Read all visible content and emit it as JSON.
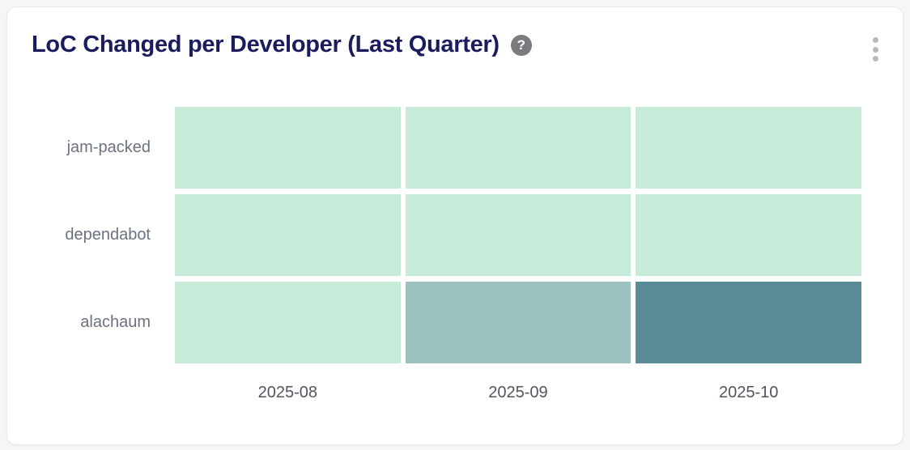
{
  "header": {
    "title": "LoC Changed per Developer (Last Quarter)",
    "help_label": "?"
  },
  "colors": {
    "page_background": "#f5f6f7",
    "card_background": "#ffffff",
    "card_border": "#e8e9eb",
    "title_text": "#1b1c5e",
    "row_label_text": "#6b7280",
    "col_label_text": "#4f565e",
    "help_icon_background": "#797b7e",
    "menu_dots": "#b6b9bd"
  },
  "chart_data": {
    "type": "heatmap",
    "title": "LoC Changed per Developer (Last Quarter)",
    "rows": [
      "jam-packed",
      "dependabot",
      "alachaum"
    ],
    "columns": [
      "2025-08",
      "2025-09",
      "2025-10"
    ],
    "cells": [
      [
        "low",
        "low",
        "low"
      ],
      [
        "low",
        "low",
        "low"
      ],
      [
        "low",
        "medium",
        "high"
      ]
    ],
    "color_scale": {
      "low": "#c7ebd9",
      "medium": "#9ac3bf",
      "high": "#5a8997"
    },
    "legend": "none",
    "cell_value_labels_visible": false,
    "grid_gap": "white gaps between cells"
  }
}
